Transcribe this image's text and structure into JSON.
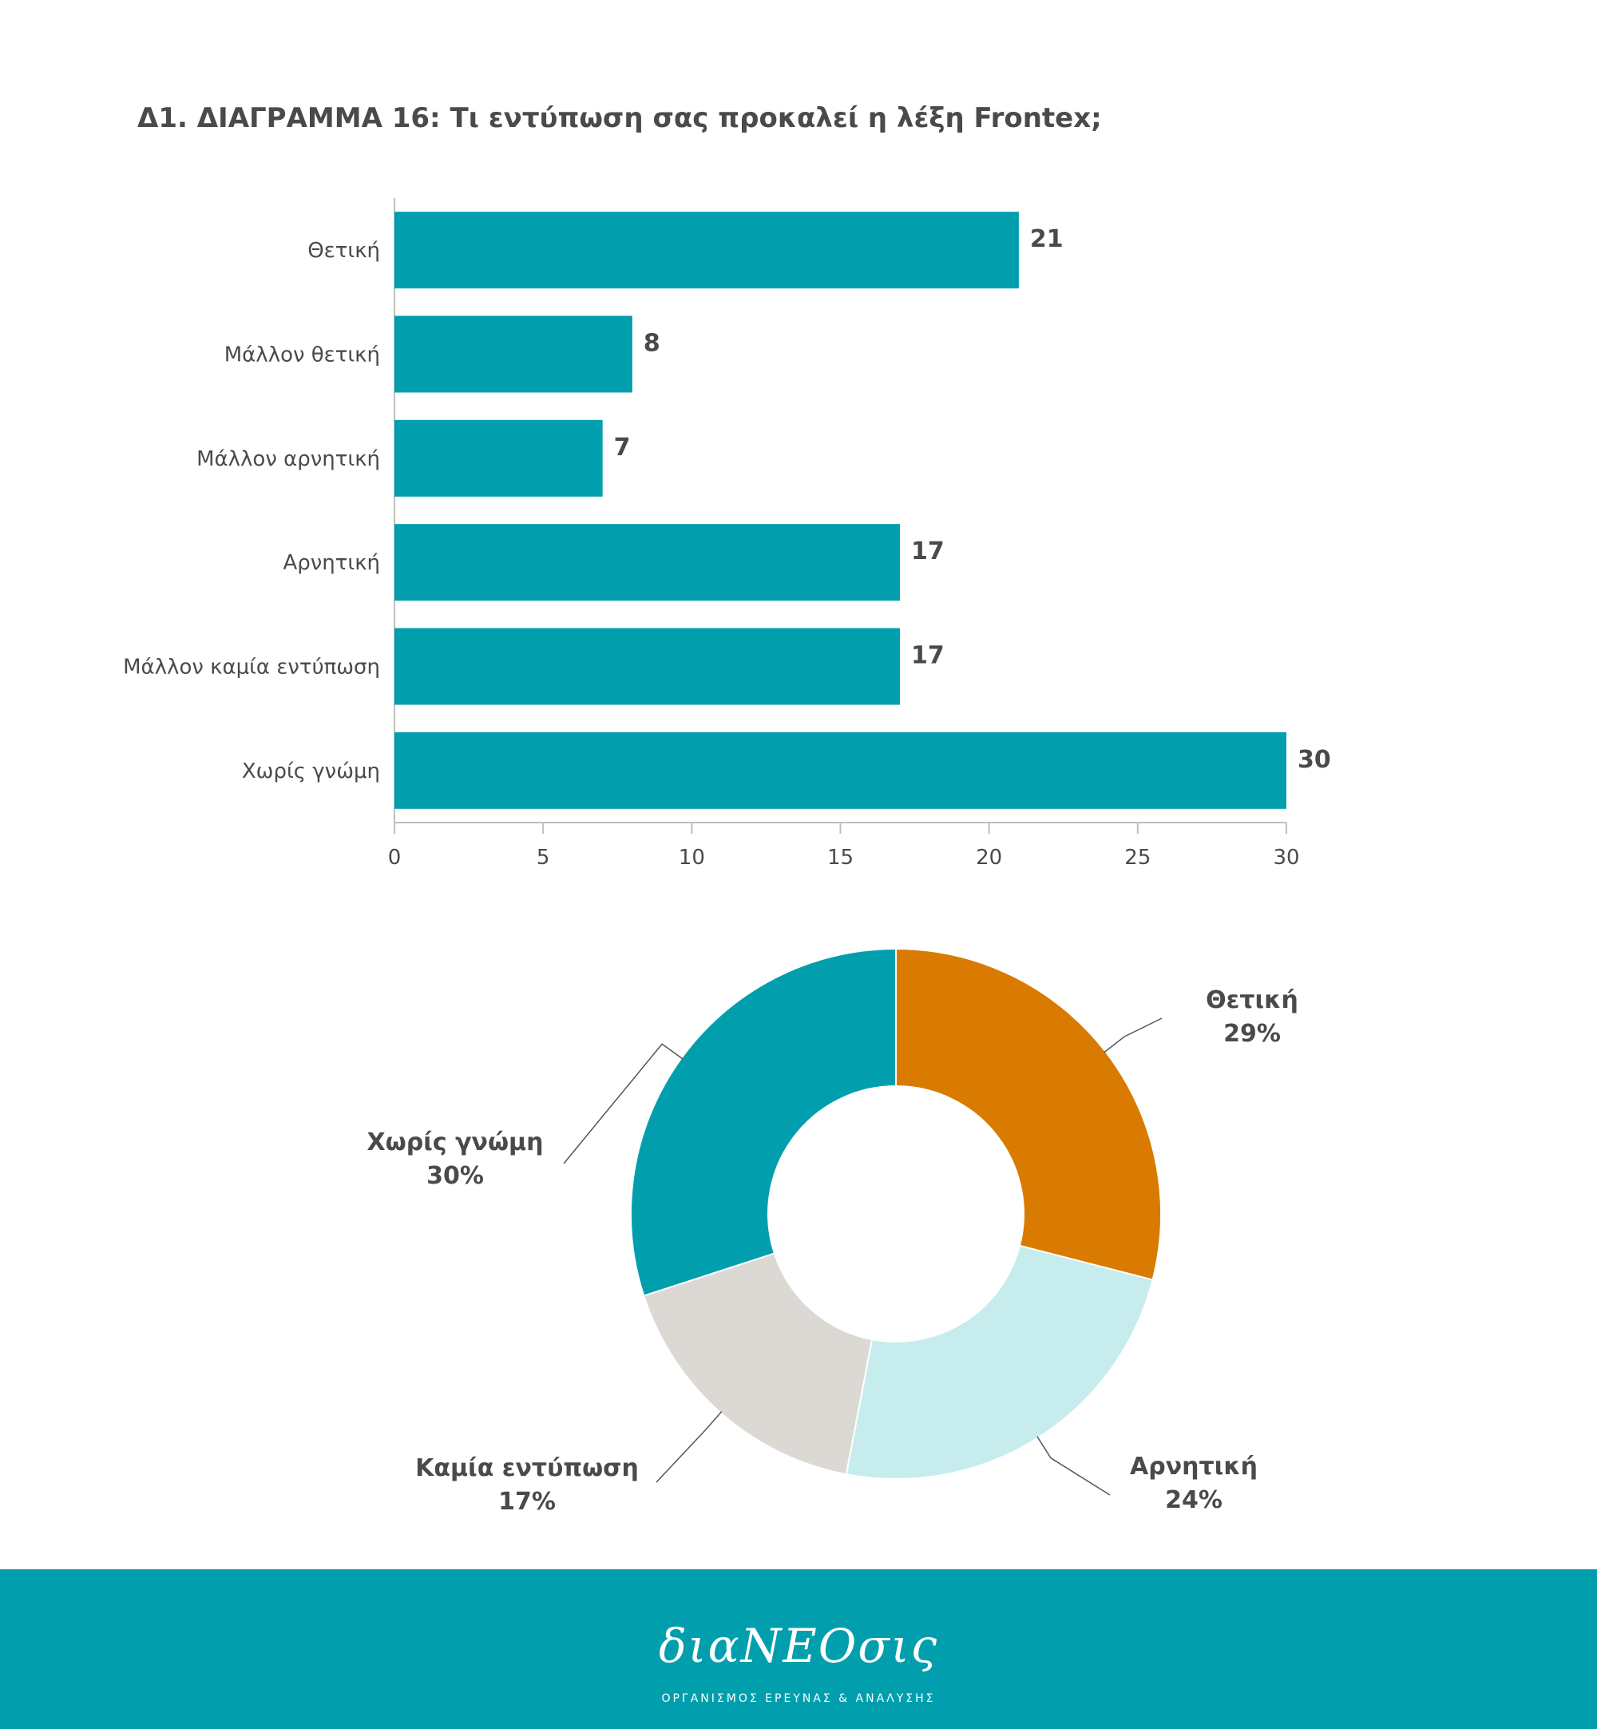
{
  "page": {
    "title": "Δ1. ΔΙΑΓΡΑΜΜΑ 16: Τι εντύπωση σας προκαλεί η λέξη Frontex;"
  },
  "colors": {
    "bar": "#019fae",
    "text": "#4a4a4a",
    "axis": "#bfbfbf",
    "footer": "#019fae"
  },
  "chart_data": [
    {
      "type": "bar",
      "orientation": "horizontal",
      "title": "",
      "categories": [
        "Θετική",
        "Μάλλον θετική",
        "Μάλλον αρνητική",
        "Αρνητική",
        "Μάλλον καμία εντύπωση",
        "Χωρίς γνώμη"
      ],
      "values": [
        21,
        8,
        7,
        17,
        17,
        30
      ],
      "xlim": [
        0,
        30
      ],
      "xticks": [
        "0",
        "5",
        "10",
        "15",
        "20",
        "25",
        "30"
      ],
      "grid": false,
      "data_labels": true
    },
    {
      "type": "pie",
      "style": "donut",
      "slices": [
        {
          "label": "Θετική",
          "percent_label": "29%",
          "value": 29,
          "color": "#d97b00"
        },
        {
          "label": "Αρνητική",
          "percent_label": "24%",
          "value": 24,
          "color": "#c6ecee"
        },
        {
          "label": "Καμία εντύπωση",
          "percent_label": "17%",
          "value": 17,
          "color": "#dcd8d4"
        },
        {
          "label": "Χωρίς γνώμη",
          "percent_label": "30%",
          "value": 30,
          "color": "#019fae"
        }
      ]
    }
  ],
  "footer": {
    "logo_text": "διαΝΕΟσις",
    "subtitle": "ΟΡΓΑΝΙΣΜΟΣ ΕΡΕΥΝΑΣ & ΑΝΑΛΥΣΗΣ"
  }
}
